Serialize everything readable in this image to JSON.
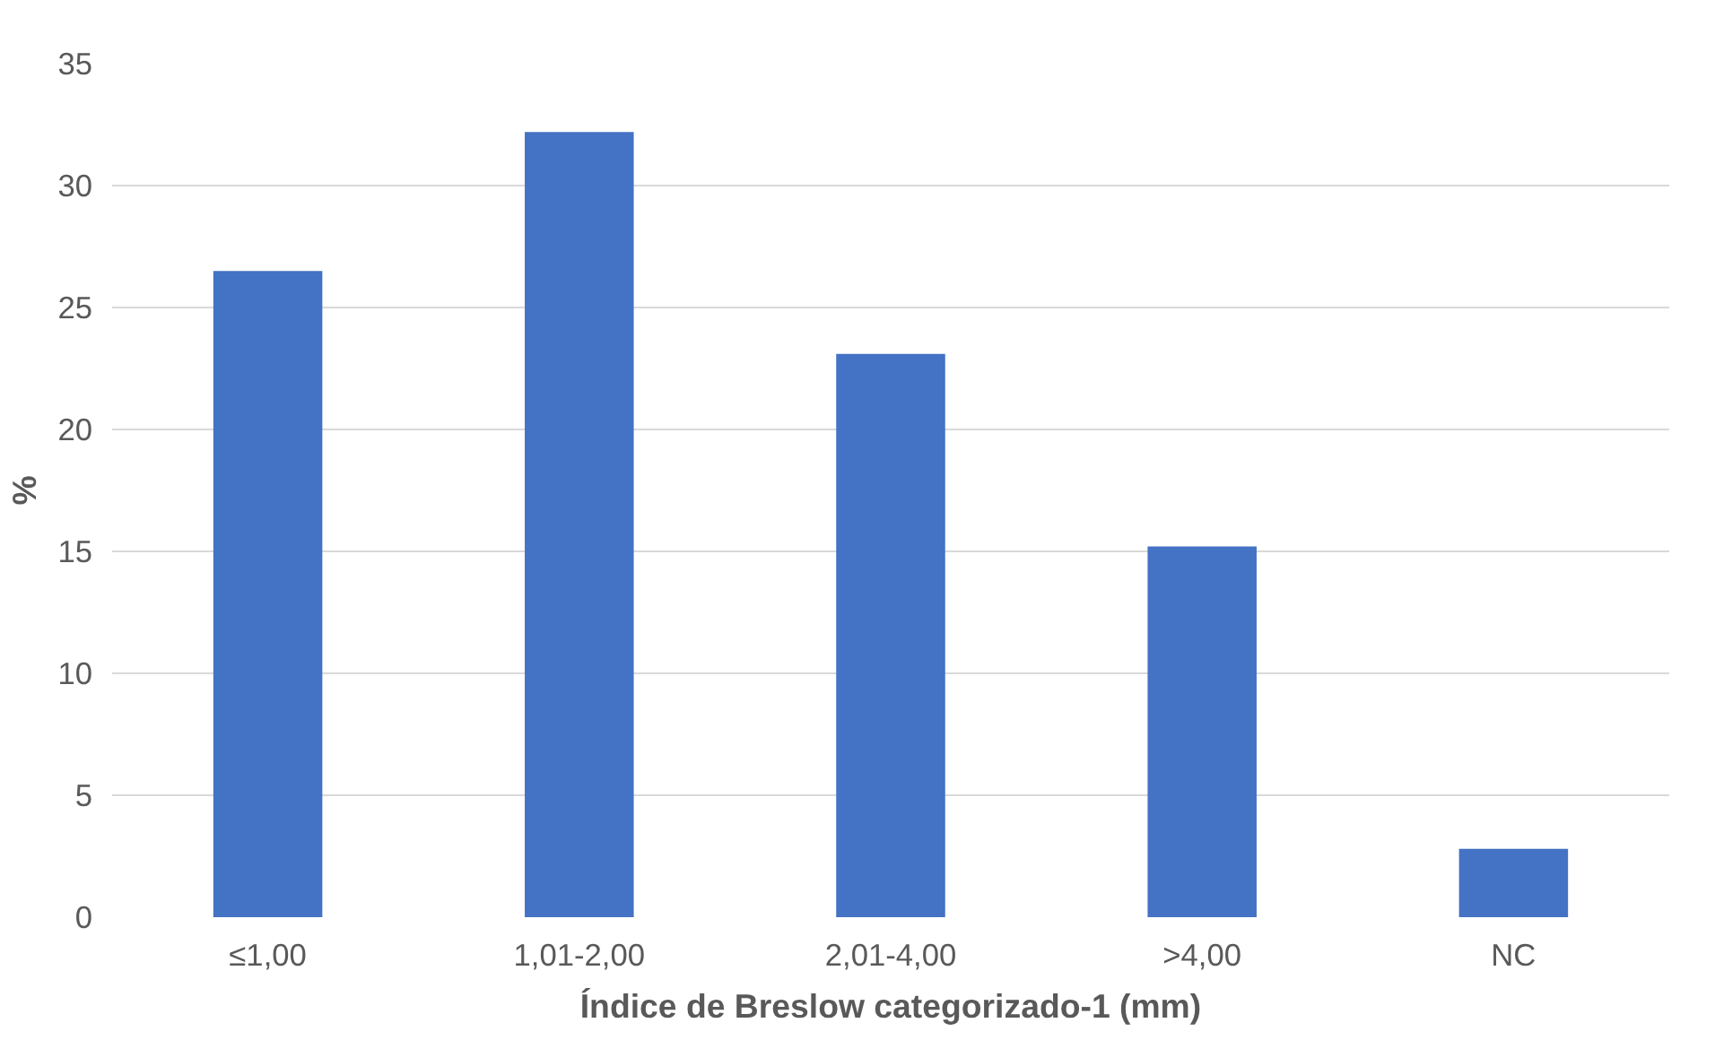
{
  "chart_data": {
    "type": "bar",
    "xlabel": "Índice de Breslow categorizado-1 (mm)",
    "ylabel": "%",
    "categories": [
      "≤1,00",
      "1,01-2,00",
      "2,01-4,00",
      ">4,00",
      "NC"
    ],
    "values": [
      26.5,
      32.2,
      23.1,
      15.2,
      2.8
    ],
    "color": "#4472c4",
    "ylim": [
      0,
      35
    ],
    "yticks": [
      0,
      5,
      10,
      15,
      20,
      25,
      30,
      35
    ],
    "grid": "y"
  }
}
